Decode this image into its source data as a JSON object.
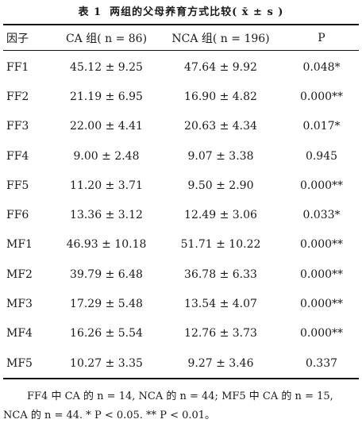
{
  "caption": {
    "number": "表 1",
    "title": "两组的父母养育方式比较( x̄ ± s )"
  },
  "table": {
    "headers": [
      "因子",
      "CA 组( n = 86)",
      "NCA 组( n = 196)",
      "P"
    ],
    "rows": [
      {
        "factor": "FF1",
        "ca": "45.12 ± 9.25",
        "nca": "47.64 ± 9.92",
        "p": "0.048*"
      },
      {
        "factor": "FF2",
        "ca": "21.19 ± 6.95",
        "nca": "16.90 ± 4.82",
        "p": "0.000**"
      },
      {
        "factor": "FF3",
        "ca": "22.00 ± 4.41",
        "nca": "20.63 ± 4.34",
        "p": "0.017*"
      },
      {
        "factor": "FF4",
        "ca": "9.00 ± 2.48",
        "nca": "9.07 ± 3.38",
        "p": "0.945"
      },
      {
        "factor": "FF5",
        "ca": "11.20 ± 3.71",
        "nca": "9.50 ± 2.90",
        "p": "0.000**"
      },
      {
        "factor": "FF6",
        "ca": "13.36 ± 3.12",
        "nca": "12.49 ± 3.06",
        "p": "0.033*"
      },
      {
        "factor": "MF1",
        "ca": "46.93 ± 10.18",
        "nca": "51.71 ± 10.22",
        "p": "0.000**"
      },
      {
        "factor": "MF2",
        "ca": "39.79 ± 6.48",
        "nca": "36.78 ± 6.33",
        "p": "0.000**"
      },
      {
        "factor": "MF3",
        "ca": "17.29 ± 5.48",
        "nca": "13.54 ± 4.07",
        "p": "0.000**"
      },
      {
        "factor": "MF4",
        "ca": "16.26 ± 5.54",
        "nca": "12.76 ± 3.73",
        "p": "0.000**"
      },
      {
        "factor": "MF5",
        "ca": "10.27 ± 3.35",
        "nca": "9.27 ± 3.46",
        "p": "0.337"
      }
    ]
  },
  "footnote": {
    "line1": "FF4 中 CA 的 n = 14, NCA 的 n = 44; MF5 中 CA 的 n = 15,",
    "line2": "NCA 的 n = 44. * P < 0.05. ** P < 0.01。"
  }
}
